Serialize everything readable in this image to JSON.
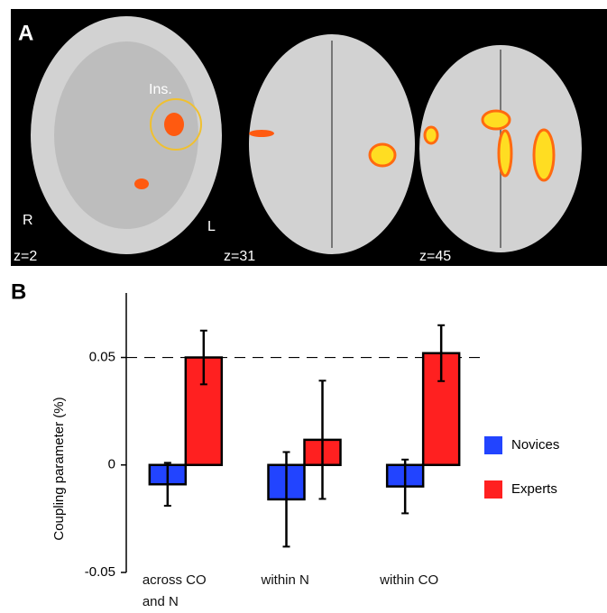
{
  "panel_a": {
    "label": "A",
    "region_label": "Ins.",
    "left_side": "R",
    "right_side": "L",
    "slices": [
      "z=2",
      "z=31",
      "z=45"
    ]
  },
  "panel_b_label": "B",
  "chart_data": {
    "type": "bar",
    "y_label": "Coupling parameter (%)",
    "categories": [
      "across CO and N",
      "within N",
      "within CO"
    ],
    "series": [
      {
        "name": "Novices",
        "color": "#2244ff",
        "values": [
          -0.009,
          -0.016,
          -0.01
        ],
        "errors": [
          0.01,
          0.022,
          0.0125
        ]
      },
      {
        "name": "Experts",
        "color": "#ff2020",
        "values": [
          0.05,
          0.0117,
          0.052
        ],
        "errors": [
          0.0125,
          0.0275,
          0.013
        ]
      }
    ],
    "ylim": [
      -0.05,
      0.08
    ],
    "yticks": [
      -0.05,
      0,
      0.05
    ],
    "reference_line": 0.05,
    "legend": "right"
  }
}
